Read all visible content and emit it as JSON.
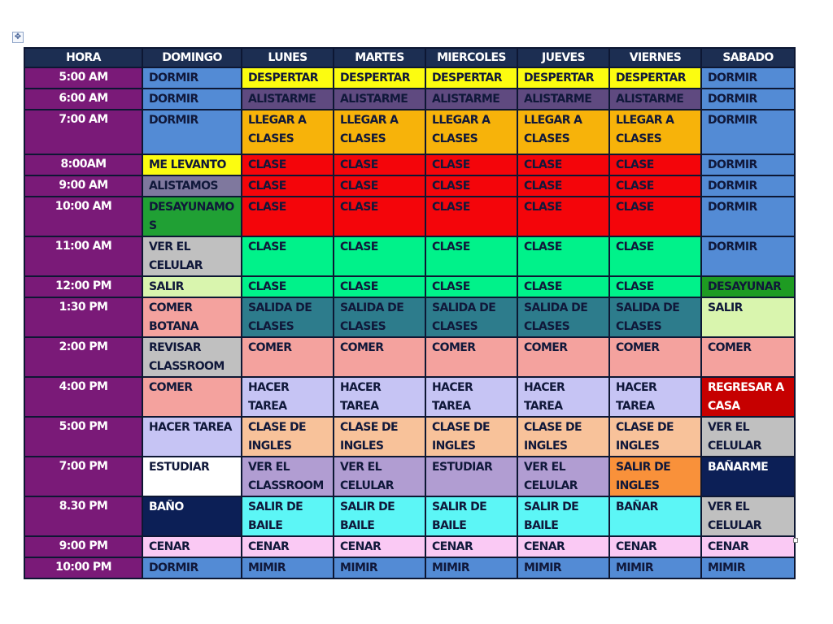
{
  "toolbar": {
    "move_handle_icon": "move-cross-icon"
  },
  "schedule": {
    "headers": [
      "HORA",
      "DOMINGO",
      "LUNES",
      "MARTES",
      "MIERCOLES",
      "JUEVES",
      "VIERNES",
      "SABADO"
    ],
    "colors": {
      "header": "#1c2e52",
      "hour": "#7a1a78",
      "border": "#0d1733"
    },
    "rows": [
      {
        "hour": "5:00 AM",
        "cells": [
          "DORMIR",
          "DESPERTAR",
          "DESPERTAR",
          "DESPERTAR",
          "DESPERTAR",
          "DESPERTAR",
          "DORMIR"
        ],
        "colors": [
          "blue",
          "yellow",
          "yellow",
          "yellow",
          "yellow",
          "yellow",
          "blue"
        ]
      },
      {
        "hour": "6:00 AM",
        "cells": [
          "DORMIR",
          "ALISTARME",
          "ALISTARME",
          "ALISTARME",
          "ALISTARME",
          "ALISTARME",
          "DORMIR"
        ],
        "colors": [
          "blue",
          "violet",
          "violet",
          "violet",
          "violet",
          "violet",
          "blue"
        ]
      },
      {
        "hour": "7:00 AM",
        "cells": [
          "DORMIR",
          "LLEGAR A CLASES",
          "LLEGAR A CLASES",
          "LLEGAR A CLASES",
          "LLEGAR A CLASES",
          "LLEGAR A CLASES",
          "DORMIR"
        ],
        "colors": [
          "blue",
          "orange",
          "orange",
          "orange",
          "orange",
          "orange",
          "blue"
        ]
      },
      {
        "hour": "8:00AM",
        "cells": [
          "ME LEVANTO",
          "CLASE",
          "CLASE",
          "CLASE",
          "CLASE",
          "CLASE",
          "DORMIR"
        ],
        "colors": [
          "yellow",
          "red",
          "red",
          "red",
          "red",
          "red",
          "blue"
        ]
      },
      {
        "hour": "9:00 AM",
        "cells": [
          "ALISTAMOS",
          "CLASE",
          "CLASE",
          "CLASE",
          "CLASE",
          "CLASE",
          "DORMIR"
        ],
        "colors": [
          "slate",
          "red",
          "red",
          "red",
          "red",
          "red",
          "blue"
        ]
      },
      {
        "hour": "10:00 AM",
        "cells": [
          "DESAYUNAMOS",
          "CLASE",
          "CLASE",
          "CLASE",
          "CLASE",
          "CLASE",
          "DORMIR"
        ],
        "colors": [
          "green",
          "red",
          "red",
          "red",
          "red",
          "red",
          "blue"
        ]
      },
      {
        "hour": "11:00 AM",
        "cells": [
          "VER EL CELULAR",
          "CLASE",
          "CLASE",
          "CLASE",
          "CLASE",
          "CLASE",
          "DORMIR"
        ],
        "colors": [
          "grey",
          "mint",
          "mint",
          "mint",
          "mint",
          "mint",
          "blue"
        ]
      },
      {
        "hour": "12:00 PM",
        "cells": [
          "SALIR",
          "CLASE",
          "CLASE",
          "CLASE",
          "CLASE",
          "CLASE",
          "DESAYUNAR"
        ],
        "colors": [
          "lime",
          "mint",
          "mint",
          "mint",
          "mint",
          "mint",
          "green2"
        ]
      },
      {
        "hour": "1:30 PM",
        "cells": [
          "COMER BOTANA",
          "SALIDA DE CLASES",
          "SALIDA DE CLASES",
          "SALIDA DE CLASES",
          "SALIDA DE CLASES",
          "SALIDA DE CLASES",
          "SALIR"
        ],
        "colors": [
          "salmon",
          "teal",
          "teal",
          "teal",
          "teal",
          "teal",
          "lime"
        ]
      },
      {
        "hour": "2:00 PM",
        "cells": [
          "REVISAR CLASSROOM",
          "COMER",
          "COMER",
          "COMER",
          "COMER",
          "COMER",
          "COMER"
        ],
        "colors": [
          "grey",
          "salmon",
          "salmon",
          "salmon",
          "salmon",
          "salmon",
          "salmon"
        ]
      },
      {
        "hour": "4:00 PM",
        "cells": [
          "COMER",
          "HACER TAREA",
          "HACER TAREA",
          "HACER TAREA",
          "HACER TAREA",
          "HACER TAREA",
          "REGRESAR A CASA"
        ],
        "colors": [
          "salmon",
          "lav",
          "lav",
          "lav",
          "lav",
          "lav",
          "crimson"
        ]
      },
      {
        "hour": "5:00 PM",
        "cells": [
          "HACER TAREA",
          "CLASE DE INGLES",
          "CLASE DE INGLES",
          "CLASE DE INGLES",
          "CLASE DE INGLES",
          "CLASE DE INGLES",
          "VER EL CELULAR"
        ],
        "colors": [
          "lav",
          "peach",
          "peach",
          "peach",
          "peach",
          "peach",
          "grey"
        ]
      },
      {
        "hour": "7:00 PM",
        "cells": [
          "ESTUDIAR",
          "VER EL CLASSROOM",
          "VER EL CELULAR",
          "ESTUDIAR",
          "VER EL CELULAR",
          "SALIR DE INGLES",
          "BAÑARME"
        ],
        "colors": [
          "white",
          "lila",
          "lila",
          "lila",
          "lila",
          "amber",
          "navy"
        ]
      },
      {
        "hour": "8.30 PM",
        "cells": [
          "BAÑO",
          "SALIR DE BAILE",
          "SALIR DE BAILE",
          "SALIR DE BAILE",
          "SALIR DE BAILE",
          "BAÑAR",
          "VER EL CELULAR"
        ],
        "colors": [
          "navy",
          "cyan",
          "cyan",
          "cyan",
          "cyan",
          "cyan",
          "grey"
        ]
      },
      {
        "hour": "9:00 PM",
        "cells": [
          "CENAR",
          "CENAR",
          "CENAR",
          "CENAR",
          "CENAR",
          "CENAR",
          "CENAR"
        ],
        "colors": [
          "pink",
          "pink",
          "pink",
          "pink",
          "pink",
          "pink",
          "pink"
        ]
      },
      {
        "hour": "10:00 PM",
        "cells": [
          "DORMIR",
          "MIMIR",
          "MIMIR",
          "MIMIR",
          "MIMIR",
          "MIMIR",
          "MIMIR"
        ],
        "colors": [
          "blue",
          "blue",
          "blue",
          "blue",
          "blue",
          "blue",
          "blue"
        ]
      }
    ]
  }
}
